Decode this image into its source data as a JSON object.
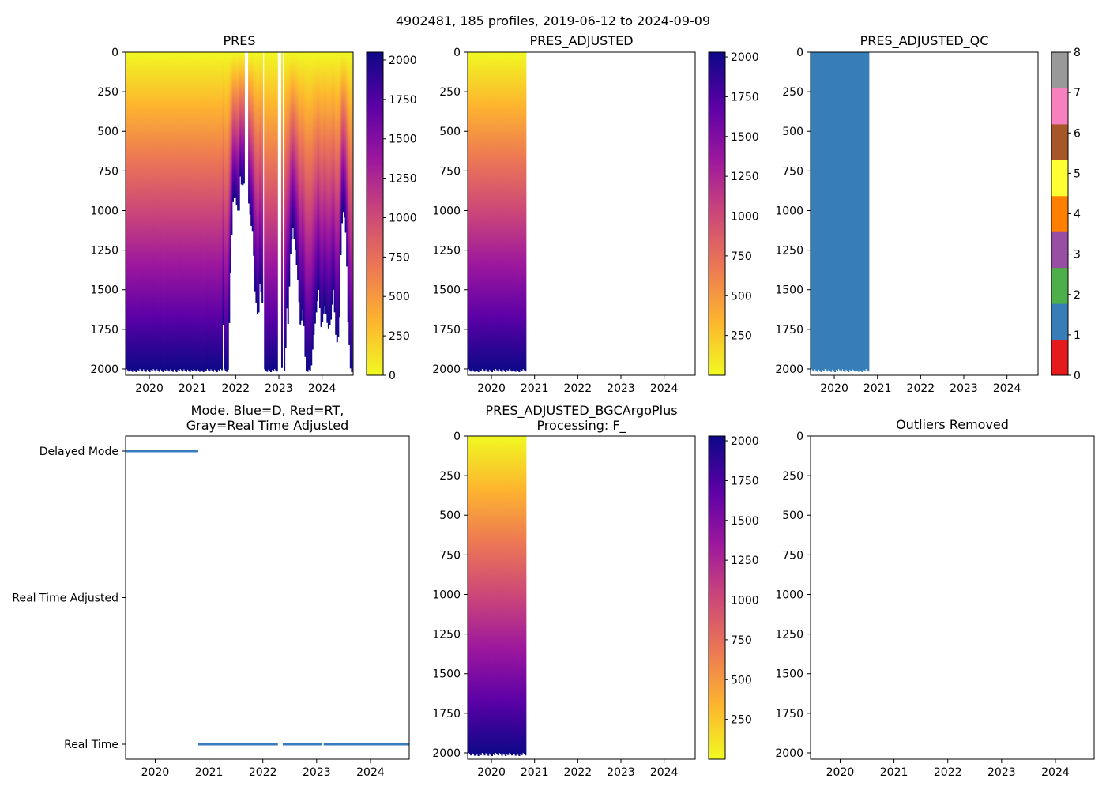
{
  "figure": {
    "suptitle": "4902481, 185 profiles, 2019-06-12 to 2024-09-09"
  },
  "colors": {
    "plasma": [
      "#f0f921",
      "#fdb42f",
      "#ed7953",
      "#cc4778",
      "#9c179e",
      "#5c01a6",
      "#0d0887"
    ],
    "qc": [
      "#e41a1c",
      "#377eb8",
      "#4daf4a",
      "#984ea3",
      "#ff7f00",
      "#ffff33",
      "#a65628",
      "#f781bf",
      "#999999"
    ],
    "mode_line": "#3a7bbf"
  },
  "chart_data": [
    {
      "id": "pres",
      "type": "heatmap",
      "title": "PRES",
      "xlim": [
        2019.45,
        2024.72
      ],
      "ylim": [
        2040,
        0
      ],
      "xticks": [
        "2020",
        "2021",
        "2022",
        "2023",
        "2024"
      ],
      "yticks": [
        "0",
        "250",
        "500",
        "750",
        "1000",
        "1250",
        "1500",
        "1750",
        "2000"
      ],
      "colorbar": {
        "cmap": "plasma",
        "range": [
          0,
          2050
        ],
        "ticks": [
          "0",
          "250",
          "500",
          "750",
          "1000",
          "1250",
          "1500",
          "1750",
          "2000"
        ]
      },
      "data_extent": [
        2019.45,
        2024.7
      ],
      "max_depth_breakpoints": [
        [
          2019.45,
          2010
        ],
        [
          2021.68,
          2010
        ],
        [
          2021.7,
          1600
        ],
        [
          2021.72,
          2010
        ],
        [
          2021.82,
          2010
        ],
        [
          2021.84,
          1800
        ],
        [
          2021.88,
          1350
        ],
        [
          2021.93,
          950
        ],
        [
          2021.98,
          900
        ],
        [
          2022.04,
          1000
        ],
        [
          2022.08,
          1000
        ],
        [
          2022.1,
          780
        ],
        [
          2022.14,
          850
        ],
        [
          2022.18,
          830
        ],
        [
          2022.22,
          0
        ],
        [
          2022.26,
          0
        ],
        [
          2022.28,
          0
        ],
        [
          2022.3,
          950
        ],
        [
          2022.36,
          1100
        ],
        [
          2022.4,
          1150
        ],
        [
          2022.44,
          1500
        ],
        [
          2022.48,
          1600
        ],
        [
          2022.52,
          1700
        ],
        [
          2022.56,
          1450
        ],
        [
          2022.62,
          1600
        ],
        [
          2022.64,
          0
        ],
        [
          2022.68,
          2010
        ],
        [
          2022.95,
          2010
        ],
        [
          2022.96,
          0
        ],
        [
          2023.02,
          0
        ],
        [
          2023.06,
          2000
        ],
        [
          2023.1,
          0
        ],
        [
          2023.14,
          2000
        ],
        [
          2023.18,
          1600
        ],
        [
          2023.2,
          1800
        ],
        [
          2023.26,
          1300
        ],
        [
          2023.32,
          1100
        ],
        [
          2023.38,
          1250
        ],
        [
          2023.44,
          1450
        ],
        [
          2023.5,
          1750
        ],
        [
          2023.56,
          1600
        ],
        [
          2023.62,
          2010
        ],
        [
          2023.74,
          2010
        ],
        [
          2023.8,
          1800
        ],
        [
          2023.86,
          1650
        ],
        [
          2023.92,
          1500
        ],
        [
          2023.98,
          1750
        ],
        [
          2024.06,
          1600
        ],
        [
          2024.14,
          1750
        ],
        [
          2024.2,
          1700
        ],
        [
          2024.26,
          1500
        ],
        [
          2024.32,
          1800
        ],
        [
          2024.36,
          1850
        ],
        [
          2024.4,
          1700
        ],
        [
          2024.44,
          1150
        ],
        [
          2024.48,
          1000
        ],
        [
          2024.52,
          1050
        ],
        [
          2024.56,
          1200
        ],
        [
          2024.6,
          1700
        ],
        [
          2024.66,
          2010
        ]
      ]
    },
    {
      "id": "pres_adj",
      "type": "heatmap",
      "title": "PRES_ADJUSTED",
      "xlim": [
        2019.45,
        2024.72
      ],
      "ylim": [
        2040,
        0
      ],
      "xticks": [
        "2020",
        "2021",
        "2022",
        "2023",
        "2024"
      ],
      "yticks": [
        "0",
        "250",
        "500",
        "750",
        "1000",
        "1250",
        "1500",
        "1750",
        "2000"
      ],
      "colorbar": {
        "cmap": "plasma",
        "range": [
          0,
          2030
        ],
        "ticks": [
          "250",
          "500",
          "750",
          "1000",
          "1250",
          "1500",
          "1750",
          "2000"
        ]
      },
      "data_extent": [
        2019.45,
        2020.8
      ],
      "max_depth": 2010
    },
    {
      "id": "pres_qc",
      "type": "heatmap",
      "title": "PRES_ADJUSTED_QC",
      "xlim": [
        2019.45,
        2024.72
      ],
      "ylim": [
        2040,
        0
      ],
      "xticks": [
        "2020",
        "2021",
        "2022",
        "2023",
        "2024"
      ],
      "yticks": [
        "0",
        "250",
        "500",
        "750",
        "1000",
        "1250",
        "1500",
        "1750",
        "2000"
      ],
      "colorbar": {
        "cmap": "qc",
        "range": [
          0,
          8
        ],
        "ticks": [
          "0",
          "1",
          "2",
          "3",
          "4",
          "5",
          "6",
          "7",
          "8"
        ]
      },
      "data_extent": [
        2019.45,
        2020.8
      ],
      "qc_value": 1,
      "max_depth": 2010
    },
    {
      "id": "mode",
      "type": "scatter",
      "title": "Mode. Blue=D, Red=RT,",
      "title2": "Gray=Real Time Adjusted",
      "xlim": [
        2019.45,
        2024.72
      ],
      "xticks": [
        "2020",
        "2021",
        "2022",
        "2023",
        "2024"
      ],
      "categories": [
        "Delayed Mode",
        "Real Time Adjusted",
        "Real Time"
      ],
      "segments": [
        {
          "category": "Delayed Mode",
          "x": [
            2019.45,
            2020.8
          ]
        },
        {
          "category": "Real Time",
          "x": [
            2020.8,
            2022.28
          ]
        },
        {
          "category": "Real Time",
          "x": [
            2022.37,
            2023.1
          ]
        },
        {
          "category": "Real Time",
          "x": [
            2023.13,
            2024.72
          ]
        }
      ]
    },
    {
      "id": "pres_bgc",
      "type": "heatmap",
      "title": "PRES_ADJUSTED_BGCArgoPlus",
      "title2": "Processing: F_",
      "xlim": [
        2019.45,
        2024.72
      ],
      "ylim": [
        2040,
        0
      ],
      "xticks": [
        "2020",
        "2021",
        "2022",
        "2023",
        "2024"
      ],
      "yticks": [
        "0",
        "250",
        "500",
        "750",
        "1000",
        "1250",
        "1500",
        "1750",
        "2000"
      ],
      "colorbar": {
        "cmap": "plasma",
        "range": [
          0,
          2030
        ],
        "ticks": [
          "250",
          "500",
          "750",
          "1000",
          "1250",
          "1500",
          "1750",
          "2000"
        ]
      },
      "data_extent": [
        2019.45,
        2020.8
      ],
      "max_depth": 2010
    },
    {
      "id": "outliers",
      "type": "scatter",
      "title": "Outliers Removed",
      "xlim": [
        2019.45,
        2024.72
      ],
      "ylim": [
        2040,
        0
      ],
      "xticks": [
        "2020",
        "2021",
        "2022",
        "2023",
        "2024"
      ],
      "yticks": [
        "0",
        "250",
        "500",
        "750",
        "1000",
        "1250",
        "1500",
        "1750",
        "2000"
      ],
      "values": []
    }
  ]
}
